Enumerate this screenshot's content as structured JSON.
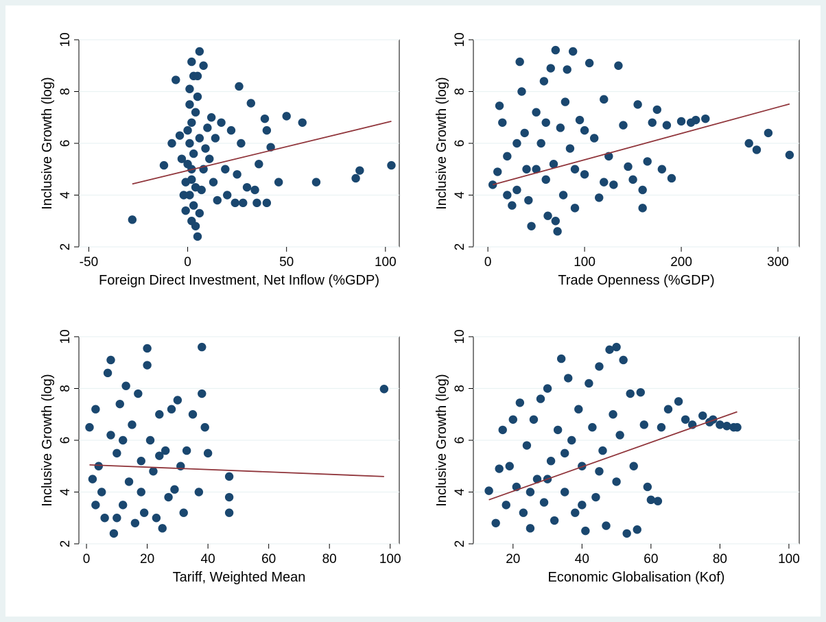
{
  "colors": {
    "background_outer": "#eaf2f3",
    "plot_background": "#ffffff",
    "marker": "#1a476f",
    "fit_line": "#90353b"
  },
  "chart_data": [
    {
      "type": "scatter",
      "title": "",
      "xlabel": "Foreign Direct Investment, Net Inflow (%GDP)",
      "ylabel": "Inclusive Growth (log)",
      "xlim": [
        -55,
        107
      ],
      "ylim": [
        2,
        10
      ],
      "xticks": [
        -50,
        0,
        50,
        100
      ],
      "yticks": [
        2,
        4,
        6,
        8,
        10
      ],
      "grid": "y",
      "fit_line": {
        "x": [
          -28,
          103
        ],
        "y": [
          4.43,
          6.85
        ]
      },
      "points": [
        [
          -28,
          3.05
        ],
        [
          -12,
          5.15
        ],
        [
          -8,
          6.0
        ],
        [
          -6,
          8.45
        ],
        [
          -4,
          6.3
        ],
        [
          -3,
          5.4
        ],
        [
          -2,
          4.0
        ],
        [
          8,
          9.0
        ],
        [
          6,
          9.55
        ],
        [
          2,
          9.15
        ],
        [
          1,
          8.1
        ],
        [
          3,
          8.6
        ],
        [
          5,
          7.8
        ],
        [
          4,
          7.2
        ],
        [
          2,
          6.8
        ],
        [
          1,
          6.0
        ],
        [
          3,
          5.6
        ],
        [
          0,
          5.2
        ],
        [
          2,
          4.6
        ],
        [
          1,
          4.0
        ],
        [
          3,
          3.6
        ],
        [
          2,
          3.0
        ],
        [
          4,
          2.8
        ],
        [
          5,
          2.4
        ],
        [
          6,
          3.3
        ],
        [
          7,
          4.2
        ],
        [
          8,
          5.0
        ],
        [
          9,
          5.8
        ],
        [
          10,
          6.6
        ],
        [
          12,
          7.0
        ],
        [
          14,
          6.2
        ],
        [
          11,
          5.4
        ],
        [
          13,
          4.5
        ],
        [
          15,
          3.8
        ],
        [
          17,
          6.8
        ],
        [
          19,
          5.0
        ],
        [
          20,
          4.0
        ],
        [
          22,
          6.5
        ],
        [
          24,
          3.7
        ],
        [
          26,
          8.2
        ],
        [
          27,
          6.0
        ],
        [
          25,
          4.8
        ],
        [
          28,
          3.7
        ],
        [
          30,
          4.3
        ],
        [
          32,
          7.55
        ],
        [
          34,
          4.2
        ],
        [
          35,
          3.7
        ],
        [
          36,
          5.2
        ],
        [
          39,
          6.95
        ],
        [
          40,
          6.5
        ],
        [
          40,
          3.7
        ],
        [
          42,
          5.85
        ],
        [
          46,
          4.5
        ],
        [
          50,
          7.05
        ],
        [
          58,
          6.8
        ],
        [
          65,
          4.5
        ],
        [
          85,
          4.65
        ],
        [
          87,
          4.95
        ],
        [
          103,
          5.15
        ],
        [
          0,
          6.5
        ],
        [
          1,
          7.5
        ],
        [
          2,
          5.0
        ],
        [
          4,
          4.3
        ],
        [
          6,
          6.2
        ],
        [
          -1,
          4.5
        ],
        [
          -1,
          3.4
        ],
        [
          5,
          8.6
        ]
      ]
    },
    {
      "type": "scatter",
      "title": "",
      "xlabel": "Trade Openness (%GDP)",
      "ylabel": "Inclusive Growth (log)",
      "xlim": [
        -15,
        322
      ],
      "ylim": [
        2,
        10
      ],
      "xticks": [
        0,
        100,
        200,
        300
      ],
      "yticks": [
        2,
        4,
        6,
        8,
        10
      ],
      "grid": "y",
      "fit_line": {
        "x": [
          5,
          312
        ],
        "y": [
          4.4,
          7.52
        ]
      },
      "points": [
        [
          5,
          4.4
        ],
        [
          10,
          4.9
        ],
        [
          12,
          7.45
        ],
        [
          15,
          6.8
        ],
        [
          20,
          5.5
        ],
        [
          25,
          3.6
        ],
        [
          30,
          4.2
        ],
        [
          33,
          9.15
        ],
        [
          35,
          8.0
        ],
        [
          38,
          6.4
        ],
        [
          40,
          5.0
        ],
        [
          42,
          3.8
        ],
        [
          45,
          2.8
        ],
        [
          50,
          7.2
        ],
        [
          55,
          6.0
        ],
        [
          58,
          8.4
        ],
        [
          60,
          4.6
        ],
        [
          62,
          3.2
        ],
        [
          65,
          8.9
        ],
        [
          68,
          5.2
        ],
        [
          70,
          9.6
        ],
        [
          72,
          2.6
        ],
        [
          75,
          6.6
        ],
        [
          78,
          4.0
        ],
        [
          80,
          7.6
        ],
        [
          82,
          8.85
        ],
        [
          85,
          5.8
        ],
        [
          88,
          9.55
        ],
        [
          90,
          3.5
        ],
        [
          95,
          6.9
        ],
        [
          100,
          4.8
        ],
        [
          105,
          9.1
        ],
        [
          110,
          6.2
        ],
        [
          115,
          3.9
        ],
        [
          120,
          7.7
        ],
        [
          125,
          5.5
        ],
        [
          130,
          4.4
        ],
        [
          135,
          9.0
        ],
        [
          140,
          6.7
        ],
        [
          145,
          5.1
        ],
        [
          150,
          4.6
        ],
        [
          155,
          7.5
        ],
        [
          160,
          3.5
        ],
        [
          160,
          4.2
        ],
        [
          165,
          5.3
        ],
        [
          170,
          6.8
        ],
        [
          175,
          7.3
        ],
        [
          180,
          5.0
        ],
        [
          185,
          6.7
        ],
        [
          190,
          4.65
        ],
        [
          200,
          6.85
        ],
        [
          210,
          6.8
        ],
        [
          215,
          6.9
        ],
        [
          225,
          6.95
        ],
        [
          270,
          6.0
        ],
        [
          278,
          5.75
        ],
        [
          290,
          6.4
        ],
        [
          312,
          5.55
        ],
        [
          20,
          4.0
        ],
        [
          30,
          6.0
        ],
        [
          50,
          5.0
        ],
        [
          60,
          6.8
        ],
        [
          90,
          5.0
        ],
        [
          70,
          3.0
        ],
        [
          100,
          6.5
        ],
        [
          120,
          4.5
        ]
      ]
    },
    {
      "type": "scatter",
      "title": "",
      "xlabel": "Tariff, Weighted Mean",
      "ylabel": "Inclusive Growth (log)",
      "xlim": [
        -2.5,
        103
      ],
      "ylim": [
        2,
        10
      ],
      "xticks": [
        0,
        20,
        40,
        60,
        80,
        100
      ],
      "yticks": [
        2,
        4,
        6,
        8,
        10
      ],
      "grid": "y",
      "fit_line": {
        "x": [
          1,
          98
        ],
        "y": [
          5.05,
          4.6
        ]
      },
      "points": [
        [
          1,
          6.5
        ],
        [
          3,
          7.2
        ],
        [
          4,
          5.0
        ],
        [
          5,
          4.0
        ],
        [
          6,
          3.0
        ],
        [
          7,
          8.6
        ],
        [
          8,
          6.2
        ],
        [
          8,
          9.1
        ],
        [
          9,
          2.4
        ],
        [
          10,
          5.5
        ],
        [
          11,
          7.4
        ],
        [
          12,
          3.5
        ],
        [
          13,
          8.1
        ],
        [
          14,
          4.4
        ],
        [
          15,
          6.6
        ],
        [
          16,
          2.8
        ],
        [
          17,
          7.8
        ],
        [
          18,
          5.2
        ],
        [
          19,
          3.2
        ],
        [
          20,
          9.55
        ],
        [
          20,
          8.9
        ],
        [
          21,
          6.0
        ],
        [
          22,
          4.8
        ],
        [
          23,
          3.0
        ],
        [
          24,
          7.0
        ],
        [
          25,
          2.6
        ],
        [
          26,
          5.6
        ],
        [
          27,
          3.8
        ],
        [
          28,
          7.2
        ],
        [
          29,
          4.1
        ],
        [
          30,
          7.55
        ],
        [
          31,
          5.0
        ],
        [
          32,
          3.2
        ],
        [
          33,
          5.6
        ],
        [
          35,
          7.0
        ],
        [
          37,
          4.0
        ],
        [
          38,
          9.6
        ],
        [
          38,
          7.8
        ],
        [
          39,
          6.5
        ],
        [
          40,
          5.5
        ],
        [
          47,
          4.6
        ],
        [
          47,
          3.2
        ],
        [
          47,
          3.8
        ],
        [
          98,
          7.98
        ],
        [
          2,
          4.5
        ],
        [
          3,
          3.5
        ],
        [
          12,
          6.0
        ],
        [
          18,
          4.0
        ],
        [
          24,
          5.4
        ],
        [
          10,
          3.0
        ]
      ]
    },
    {
      "type": "scatter",
      "title": "",
      "xlabel": "Economic Globalisation (Kof)",
      "ylabel": "Inclusive Growth (log)",
      "xlim": [
        8.5,
        103
      ],
      "ylim": [
        2,
        10
      ],
      "xticks": [
        20,
        40,
        60,
        80,
        100
      ],
      "yticks": [
        2,
        4,
        6,
        8,
        10
      ],
      "grid": "y",
      "fit_line": {
        "x": [
          13,
          85
        ],
        "y": [
          3.7,
          7.1
        ]
      },
      "points": [
        [
          13,
          4.05
        ],
        [
          15,
          2.8
        ],
        [
          16,
          4.9
        ],
        [
          17,
          6.4
        ],
        [
          18,
          3.5
        ],
        [
          19,
          5.0
        ],
        [
          20,
          6.8
        ],
        [
          21,
          4.2
        ],
        [
          22,
          7.45
        ],
        [
          23,
          3.2
        ],
        [
          24,
          5.8
        ],
        [
          25,
          2.6
        ],
        [
          26,
          6.8
        ],
        [
          27,
          4.5
        ],
        [
          28,
          7.6
        ],
        [
          29,
          3.6
        ],
        [
          30,
          8.0
        ],
        [
          31,
          5.2
        ],
        [
          32,
          2.9
        ],
        [
          33,
          6.4
        ],
        [
          34,
          9.15
        ],
        [
          35,
          4.0
        ],
        [
          36,
          8.4
        ],
        [
          37,
          6.0
        ],
        [
          38,
          3.2
        ],
        [
          39,
          7.2
        ],
        [
          40,
          5.0
        ],
        [
          41,
          2.5
        ],
        [
          42,
          8.2
        ],
        [
          43,
          6.5
        ],
        [
          44,
          3.8
        ],
        [
          45,
          8.85
        ],
        [
          46,
          5.6
        ],
        [
          47,
          2.7
        ],
        [
          48,
          9.5
        ],
        [
          49,
          7.0
        ],
        [
          50,
          9.6
        ],
        [
          50,
          4.4
        ],
        [
          51,
          6.2
        ],
        [
          52,
          9.1
        ],
        [
          53,
          2.4
        ],
        [
          54,
          7.8
        ],
        [
          55,
          5.0
        ],
        [
          56,
          2.55
        ],
        [
          57,
          7.85
        ],
        [
          58,
          6.6
        ],
        [
          59,
          4.2
        ],
        [
          60,
          3.7
        ],
        [
          62,
          3.65
        ],
        [
          63,
          6.5
        ],
        [
          65,
          7.2
        ],
        [
          68,
          7.5
        ],
        [
          70,
          6.8
        ],
        [
          72,
          6.6
        ],
        [
          75,
          6.95
        ],
        [
          77,
          6.7
        ],
        [
          78,
          6.8
        ],
        [
          80,
          6.6
        ],
        [
          82,
          6.55
        ],
        [
          84,
          6.5
        ],
        [
          85,
          6.5
        ],
        [
          30,
          4.5
        ],
        [
          40,
          3.5
        ],
        [
          45,
          4.8
        ],
        [
          25,
          4.0
        ],
        [
          35,
          5.5
        ]
      ]
    }
  ]
}
